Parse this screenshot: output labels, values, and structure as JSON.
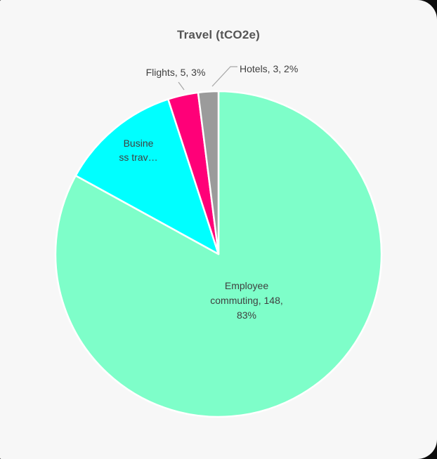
{
  "chart_data": {
    "type": "pie",
    "title": "Travel (tCO2e)",
    "start_angle_deg": 0,
    "direction": "clockwise",
    "legend": "none",
    "background_color": "#f7f7f7",
    "title_color": "#555555",
    "label_color": "#3f3f3f",
    "leader_line_color": "#a6a6a6",
    "slice_border_color": "#ffffff",
    "slices": [
      {
        "id": "employee-commuting",
        "name": "Employee commuting",
        "value": 148,
        "percent": 83,
        "color": "#7efec9",
        "label_placement": "inside",
        "label_lines": [
          "Employee",
          "commuting, 148,",
          "83%"
        ]
      },
      {
        "id": "business-travel",
        "name": "Business travel",
        "value": 22,
        "percent": 12,
        "estimated": true,
        "color": "#00ffff",
        "label_placement": "inside",
        "label_truncated": true,
        "label_lines": [
          "Busine",
          "ss trav…"
        ]
      },
      {
        "id": "flights",
        "name": "Flights",
        "value": 5,
        "percent": 3,
        "color": "#ff0078",
        "label_placement": "outside",
        "label": "Flights, 5, 3%"
      },
      {
        "id": "hotels",
        "name": "Hotels",
        "value": 3,
        "percent": 2,
        "color": "#9b9b9b",
        "label_placement": "outside",
        "label": "Hotels, 3, 2%"
      }
    ]
  }
}
